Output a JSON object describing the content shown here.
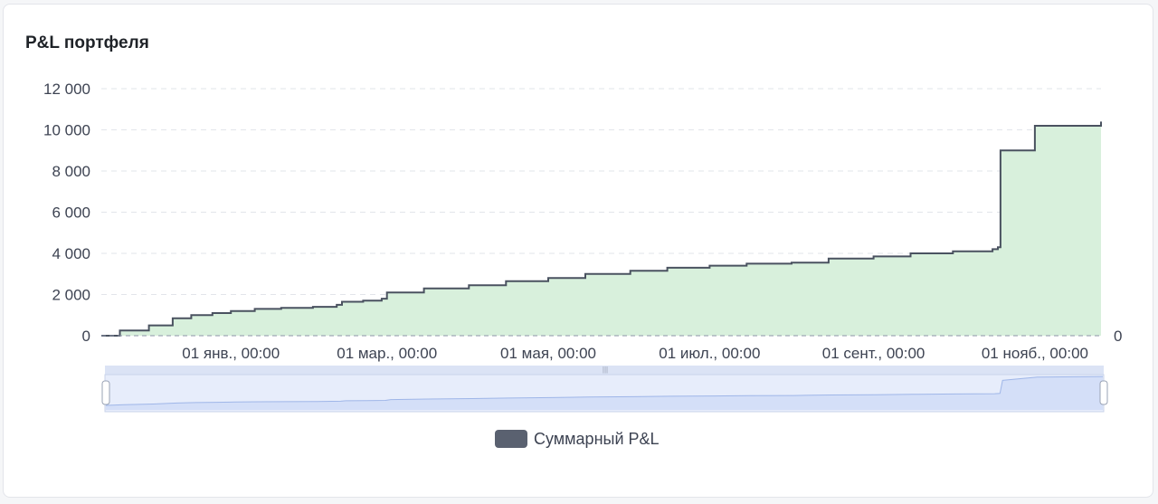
{
  "card": {
    "title": "P&L портфеля"
  },
  "chart_data": {
    "type": "area",
    "title": "P&L портфеля",
    "xlabel": "",
    "ylabel": "",
    "ylim": [
      0,
      12000
    ],
    "y_ticks": [
      "0",
      "2 000",
      "4 000",
      "6 000",
      "8 000",
      "10 000",
      "12 000"
    ],
    "y_tick_values": [
      0,
      2000,
      4000,
      6000,
      8000,
      10000,
      12000
    ],
    "x_tick_labels": [
      "01 янв., 00:00",
      "01 мар., 00:00",
      "01 мая, 00:00",
      "01 июл., 00:00",
      "01 сент., 00:00",
      "01 нояб., 00:00"
    ],
    "x_tick_dates": [
      "2025-01-01",
      "2025-03-01",
      "2025-05-01",
      "2025-07-01",
      "2025-09-01",
      "2025-11-01"
    ],
    "x_range": [
      "2024-11-13",
      "2025-11-26"
    ],
    "right_axis_label": "0",
    "grid": true,
    "legend_position": "bottom-center",
    "series": [
      {
        "name": "Суммарный P&L",
        "color": "#4a5260",
        "fill": "#d8f0dc",
        "x": [
          "2024-11-13",
          "2024-11-20",
          "2024-12-01",
          "2024-12-10",
          "2024-12-17",
          "2024-12-25",
          "2025-01-01",
          "2025-01-10",
          "2025-01-20",
          "2025-02-01",
          "2025-02-10",
          "2025-02-12",
          "2025-02-20",
          "2025-02-27",
          "2025-03-01",
          "2025-03-15",
          "2025-04-01",
          "2025-04-15",
          "2025-05-01",
          "2025-05-15",
          "2025-06-01",
          "2025-06-15",
          "2025-07-01",
          "2025-07-15",
          "2025-08-01",
          "2025-08-15",
          "2025-09-01",
          "2025-09-15",
          "2025-10-01",
          "2025-10-16",
          "2025-10-18",
          "2025-10-19",
          "2025-11-01",
          "2025-11-26"
        ],
        "values": [
          0,
          250,
          500,
          850,
          1000,
          1100,
          1200,
          1300,
          1350,
          1400,
          1500,
          1650,
          1700,
          1800,
          2100,
          2300,
          2450,
          2650,
          2800,
          3000,
          3150,
          3300,
          3400,
          3500,
          3550,
          3750,
          3850,
          4000,
          4100,
          4200,
          4300,
          9000,
          10200,
          10400
        ]
      }
    ],
    "legend": [
      {
        "label": "Суммарный P&L",
        "color": "#5a6170"
      }
    ]
  }
}
